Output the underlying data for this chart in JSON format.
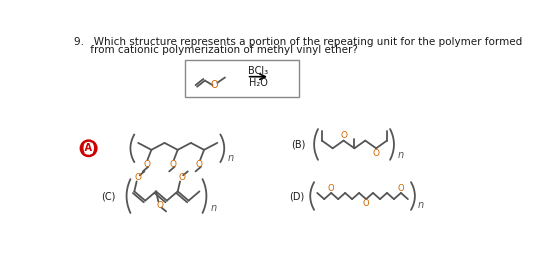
{
  "title_line1": "9.   Which structure represents a portion of the repeating unit for the polymer formed",
  "title_line2": "     from cationic polymerization of methyl vinyl ether?",
  "bg_color": "#ffffff",
  "text_color": "#1a1a1a",
  "label_A": "(A)",
  "label_B": "(B)",
  "label_C": "(C)",
  "label_D": "(D)",
  "circle_color": "#cc0000",
  "structure_color": "#555555",
  "oxygen_color": "#cc6600",
  "BCl3": "BCl₃",
  "H2O": "H₂O"
}
